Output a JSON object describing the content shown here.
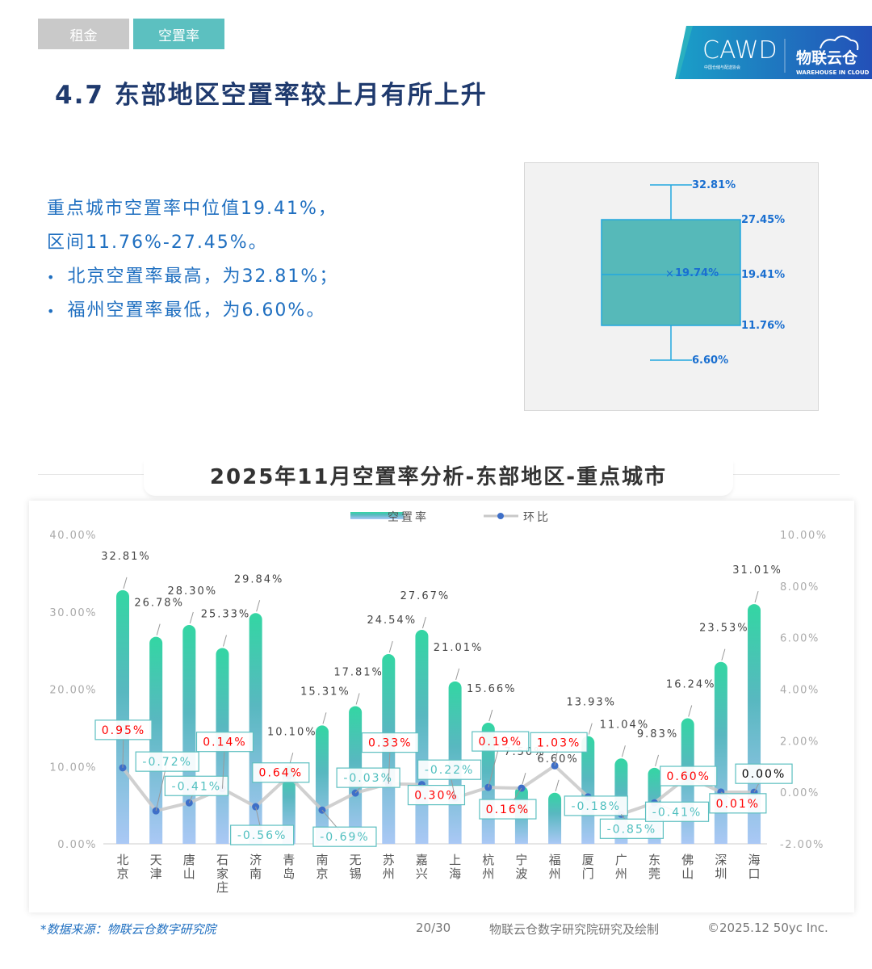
{
  "tabs": [
    {
      "label": "租金",
      "active": false
    },
    {
      "label": "空置率",
      "active": true
    }
  ],
  "title": "4.7 东部地区空置率较上月有所上升",
  "logo": {
    "cawd": "CAWD",
    "cawd_sub": "中国仓储与配送协会",
    "brand": "物联云仓",
    "brand_en": "WAREHOUSE IN CLOUD"
  },
  "summary": [
    "重点城市空置率中位值19.41%，",
    "区间11.76%-27.45%。",
    "北京空置率最高，为32.81%；",
    "福州空置率最低，为6.60%。"
  ],
  "boxplot": {
    "max": "32.81%",
    "q3": "27.45%",
    "median": "19.41%",
    "mean": "19.74%",
    "q1": "11.76%",
    "min": "6.60%",
    "max_v": 32.81,
    "q3_v": 27.45,
    "median_v": 19.41,
    "mean_v": 19.74,
    "q1_v": 11.76,
    "min_v": 6.6,
    "fill": "#56b9b9",
    "stroke": "#22a8e0"
  },
  "section_title": "2025年11月空置率分析-东部地区-重点城市",
  "chart_data": {
    "type": "bar+line",
    "categories": [
      "北京",
      "天津",
      "唐山",
      "石家庄",
      "济南",
      "青岛",
      "南京",
      "无锡",
      "苏州",
      "嘉兴",
      "上海",
      "杭州",
      "宁波",
      "福州",
      "厦门",
      "广州",
      "东莞",
      "佛山",
      "深圳",
      "海口"
    ],
    "series": [
      {
        "name": "空置率",
        "type": "bar",
        "axis": "left",
        "values": [
          32.81,
          26.78,
          28.3,
          25.33,
          29.84,
          10.1,
          15.31,
          17.81,
          24.54,
          27.67,
          21.01,
          15.66,
          7.5,
          6.6,
          13.93,
          11.04,
          9.83,
          16.24,
          23.53,
          31.01
        ],
        "labels": [
          "32.81%",
          "26.78%",
          "28.30%",
          "25.33%",
          "29.84%",
          "10.10%",
          "15.31%",
          "17.81%",
          "24.54%",
          "27.67%",
          "21.01%",
          "15.66%",
          "7.50%",
          "6.60%",
          "13.93%",
          "11.04%",
          "9.83%",
          "16.24%",
          "23.53%",
          "31.01%"
        ]
      },
      {
        "name": "环比",
        "type": "line",
        "axis": "right",
        "values": [
          0.95,
          -0.72,
          -0.41,
          0.14,
          -0.56,
          0.64,
          -0.69,
          -0.03,
          0.33,
          0.3,
          -0.22,
          0.19,
          0.16,
          1.03,
          -0.18,
          -0.85,
          -0.41,
          0.6,
          0.01,
          0.0
        ],
        "labels": [
          "0.95%",
          "-0.72%",
          "-0.41%",
          "0.14%",
          "-0.56%",
          "0.64%",
          "-0.69%",
          "-0.03%",
          "0.33%",
          "0.30%",
          "-0.22%",
          "0.19%",
          "0.16%",
          "1.03%",
          "-0.18%",
          "-0.85%",
          "-0.41%",
          "0.60%",
          "0.01%",
          "0.00%"
        ]
      }
    ],
    "y_left": {
      "range": [
        0,
        40
      ],
      "ticks": [
        "0.00%",
        "10.00%",
        "20.00%",
        "30.00%",
        "40.00%"
      ]
    },
    "y_right": {
      "range": [
        -2,
        10
      ],
      "ticks": [
        "-2.00%",
        "0.00%",
        "2.00%",
        "4.00%",
        "6.00%",
        "8.00%",
        "10.00%"
      ]
    },
    "legend_position": "top-center",
    "grid": false,
    "colors": {
      "bar_top": "#33d6a3",
      "bar_mid": "#58b8c0",
      "bar_bottom": "#aac8f5",
      "line": "#c8c8c8",
      "dot": "#3e6fc8",
      "positive": "#ff0000",
      "negative": "#4fbfbf",
      "zero": "#000000",
      "label_border": "#5cbfc0"
    }
  },
  "footer": {
    "source": "*数据来源：物联云仓数字研究院",
    "page": "20/30",
    "credit": "物联云仓数字研究院研究及绘制",
    "copyright": "©2025.12 50yc Inc."
  }
}
